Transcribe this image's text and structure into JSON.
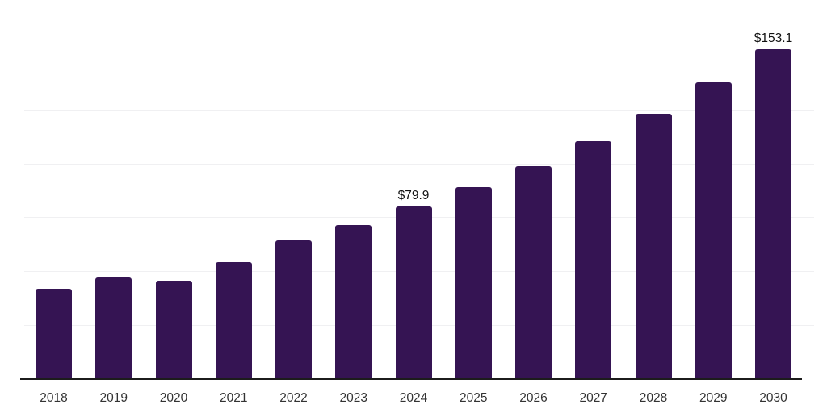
{
  "chart_data": {
    "type": "bar",
    "title": "",
    "xlabel": "",
    "ylabel": "",
    "categories": [
      "2018",
      "2019",
      "2020",
      "2021",
      "2022",
      "2023",
      "2024",
      "2025",
      "2026",
      "2027",
      "2028",
      "2029",
      "2030"
    ],
    "values": [
      41.8,
      47.1,
      45.8,
      54.1,
      64.5,
      71.6,
      79.9,
      89.1,
      98.8,
      110.4,
      123.1,
      137.6,
      153.1
    ],
    "data_labels": {
      "2024": "$79.9",
      "2030": "$153.1"
    },
    "ylim": [
      0,
      175
    ],
    "gridline_step": 25,
    "grid": true,
    "legend": false,
    "y_axis_labels_visible": false,
    "colors": {
      "bar": "#351453",
      "grid": "#f0f0f2",
      "axis": "#1c1c1c",
      "tick_label": "#333333",
      "data_label": "#111111",
      "background": "#ffffff"
    }
  }
}
